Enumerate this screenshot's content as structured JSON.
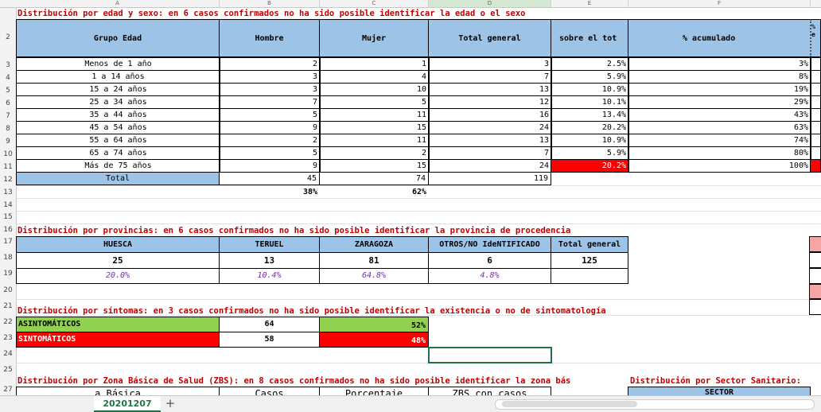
{
  "columns": [
    "A",
    "B",
    "C",
    "D",
    "E",
    "F"
  ],
  "rows": [
    "2",
    "3",
    "4",
    "5",
    "6",
    "7",
    "8",
    "9",
    "10",
    "11",
    "12",
    "13",
    "14",
    "15",
    "16",
    "17",
    "18",
    "19",
    "20",
    "21",
    "22",
    "23",
    "24",
    "25",
    "27"
  ],
  "age": {
    "title": "Distribución por edad y sexo: en 6 casos confirmados no ha sido posible identificar la edad o el sexo",
    "headers": [
      "Grupo Edad",
      "Hombre",
      "Mujer",
      "Total general",
      "sobre el tot",
      "%  acumulado"
    ],
    "extra_header": "%\ne",
    "rows": [
      [
        "Menos de 1 año",
        "2",
        "1",
        "3",
        "2.5%",
        "3%"
      ],
      [
        "1 a 14 años",
        "3",
        "4",
        "7",
        "5.9%",
        "8%"
      ],
      [
        "15 a 24 años",
        "3",
        "10",
        "13",
        "10.9%",
        "19%"
      ],
      [
        "25 a 34 años",
        "7",
        "5",
        "12",
        "10.1%",
        "29%"
      ],
      [
        "35 a 44 años",
        "5",
        "11",
        "16",
        "13.4%",
        "43%"
      ],
      [
        "45 a 54 años",
        "9",
        "15",
        "24",
        "20.2%",
        "63%"
      ],
      [
        "55 a 64 años",
        "2",
        "11",
        "13",
        "10.9%",
        "74%"
      ],
      [
        "65 a 74 años",
        "5",
        "2",
        "7",
        "5.9%",
        "80%"
      ],
      [
        "Más de 75 años",
        "9",
        "15",
        "24",
        "20.2%",
        "100%"
      ]
    ],
    "total": [
      "Total",
      "45",
      "74",
      "119"
    ],
    "pct": [
      "38%",
      "62%"
    ]
  },
  "prov": {
    "title": "Distribución por provincias: en 6 casos confirmados no ha sido posible identificar la provincia de procedencia",
    "headers": [
      "HUESCA",
      "TERUEL",
      "ZARAGOZA",
      "OTROS/NO IdeNTIFICADO",
      "Total general"
    ],
    "values": [
      "25",
      "13",
      "81",
      "6",
      "125"
    ],
    "pcts": [
      "20.0%",
      "10.4%",
      "64.8%",
      "4.8%"
    ]
  },
  "sint": {
    "title": "Distribución por síntomas: en 3 casos confirmados no ha sido posible identificar la existencia o no de sintomatología",
    "rows": [
      {
        "label": "ASINTOMÁTICOS",
        "count": "64",
        "pct": "52%"
      },
      {
        "label": "SINTOMÁTICOS",
        "count": "58",
        "pct": "48%"
      }
    ]
  },
  "zbs": {
    "title": "Distribución por Zona Básica de Salud (ZBS): en 8 casos confirmados no ha sido posible identificar la zona bás",
    "title2": "Distribución por Sector Sanitario:",
    "headers": [
      "a Básica",
      "Casos",
      "Porcentaje",
      "ZBS con casos"
    ],
    "sector": "SECTOR"
  },
  "sheet_tab": "20201207",
  "add_sheet": "+",
  "colors": {
    "header_blue": "#9dc3e6",
    "red": "#ff0000",
    "green": "#92d050",
    "title_red": "#c00000",
    "pink": "#f4a6a6"
  }
}
